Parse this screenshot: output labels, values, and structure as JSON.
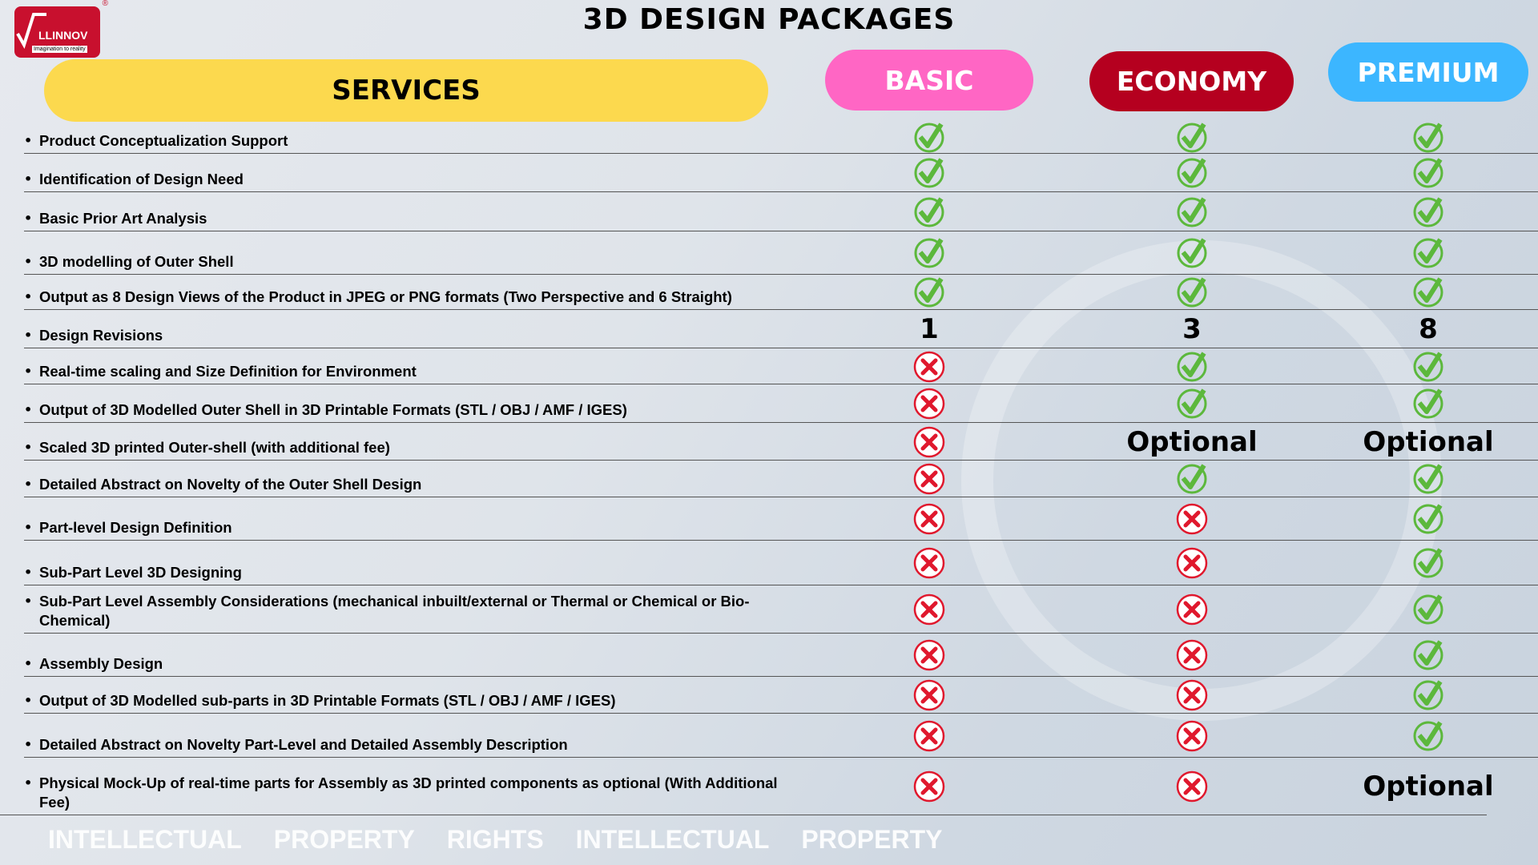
{
  "logo": {
    "name": "LLINNOV",
    "tagline": "Imagination to reality",
    "reg": "®"
  },
  "title": "3D DESIGN PACKAGES",
  "headers": {
    "services": "SERVICES",
    "basic": "BASIC",
    "economy": "ECONOMY",
    "premium": "PREMIUM"
  },
  "watermark": {
    "a": "INTELLECTUAL",
    "b": "PROPERTY",
    "c": "RIGHTS",
    "d": "INTELLECTUAL",
    "e": "PROPERTY"
  },
  "colors": {
    "check": "#5cb83c",
    "cross": "#e0182d",
    "basic": "#ff66c4",
    "economy": "#b5001f",
    "premium": "#3cb6ff",
    "services": "#fcd94e"
  },
  "rows": [
    {
      "service": "Product Conceptualization Support",
      "basic": "check",
      "economy": "check",
      "premium": "check"
    },
    {
      "service": "Identification of Design Need",
      "basic": "check",
      "economy": "check",
      "premium": "check"
    },
    {
      "service": "Basic Prior Art Analysis",
      "basic": "check",
      "economy": "check",
      "premium": "check"
    },
    {
      "service": "3D modelling of Outer Shell",
      "basic": "check",
      "economy": "check",
      "premium": "check"
    },
    {
      "service": "Output as 8 Design Views of the Product in JPEG or PNG formats (Two Perspective and 6 Straight)",
      "basic": "check",
      "economy": "check",
      "premium": "check"
    },
    {
      "service": "Design Revisions",
      "basic": "1",
      "economy": "3",
      "premium": "8"
    },
    {
      "service": "Real-time scaling and Size Definition for Environment",
      "basic": "cross",
      "economy": "check",
      "premium": "check"
    },
    {
      "service": "Output of 3D Modelled Outer Shell in 3D Printable Formats (STL / OBJ / AMF / IGES)",
      "basic": "cross",
      "economy": "check",
      "premium": "check"
    },
    {
      "service": "Scaled 3D printed Outer-shell (with additional fee)",
      "basic": "cross",
      "economy": "Optional",
      "premium": "Optional"
    },
    {
      "service": "Detailed Abstract on Novelty of the Outer Shell Design",
      "basic": "cross",
      "economy": "check",
      "premium": "check"
    },
    {
      "service": "Part-level Design Definition",
      "basic": "cross",
      "economy": "cross",
      "premium": "check"
    },
    {
      "service": "Sub-Part Level 3D Designing",
      "basic": "cross",
      "economy": "cross",
      "premium": "check"
    },
    {
      "service": "Sub-Part Level Assembly Considerations (mechanical inbuilt/external or Thermal or Chemical or Bio-Chemical)",
      "basic": "cross",
      "economy": "cross",
      "premium": "check"
    },
    {
      "service": "Assembly Design",
      "basic": "cross",
      "economy": "cross",
      "premium": "check"
    },
    {
      "service": "Output of 3D Modelled sub-parts in 3D Printable Formats (STL / OBJ / AMF / IGES)",
      "basic": "cross",
      "economy": "cross",
      "premium": "check"
    },
    {
      "service": "Detailed Abstract on Novelty Part-Level and Detailed Assembly Description",
      "basic": "cross",
      "economy": "cross",
      "premium": "check"
    },
    {
      "service": "Physical Mock-Up of real-time parts for Assembly as 3D printed components as optional (With Additional Fee)",
      "basic": "cross",
      "economy": "cross",
      "premium": "Optional"
    }
  ]
}
